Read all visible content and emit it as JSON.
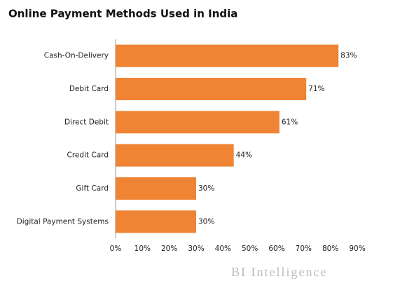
{
  "chart_data": {
    "type": "hbar",
    "title": "Online Payment Methods Used in India",
    "categories": [
      "Cash-On-Delivery",
      "Debit Card",
      "Direct Debit",
      "Credit Card",
      "Gift Card",
      "Digital Payment Systems"
    ],
    "values": [
      83,
      71,
      61,
      44,
      30,
      30
    ],
    "value_labels": [
      "83%",
      "71%",
      "61%",
      "44%",
      "30%",
      "30%"
    ],
    "color": "#ee8434",
    "xlim": [
      0,
      90
    ],
    "xticks": [
      {
        "value": 0,
        "label": "0%"
      },
      {
        "value": 10,
        "label": "10%"
      },
      {
        "value": 20,
        "label": "20%"
      },
      {
        "value": 30,
        "label": "30%"
      },
      {
        "value": 40,
        "label": "40%"
      },
      {
        "value": 50,
        "label": "50%"
      },
      {
        "value": 60,
        "label": "60%"
      },
      {
        "value": 70,
        "label": "70%"
      },
      {
        "value": 80,
        "label": "80%"
      },
      {
        "value": 90,
        "label": "90%"
      }
    ],
    "source": "BI Intelligence"
  }
}
